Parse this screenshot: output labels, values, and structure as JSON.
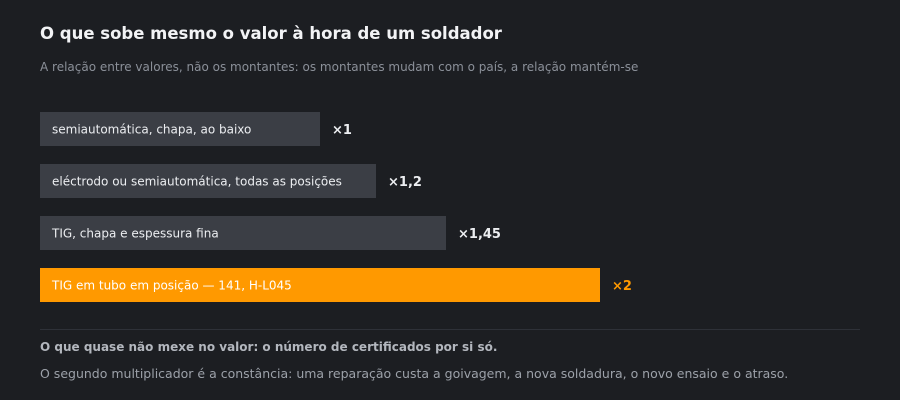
{
  "header": {
    "title": "O que sobe mesmo o valor à hora de um soldador",
    "subtitle": "A relação entre valores, não os montantes: os montantes mudam com o país, a relação mantém-se"
  },
  "chart_data": {
    "type": "bar",
    "orientation": "horizontal",
    "categories": [
      "semiautomática, chapa, ao baixo",
      "eléctrodo ou semiautomática, todas as posições",
      "TIG, chapa e espessura fina",
      "TIG em tubo em posição — 141, H-L045"
    ],
    "values": [
      1,
      1.2,
      1.45,
      2
    ],
    "value_labels": [
      "×1",
      "×1,2",
      "×1,45",
      "×2"
    ],
    "highlight_index": 3,
    "colors": {
      "bar": "#3b3e45",
      "highlight": "#ff9900",
      "label": "#eceef1",
      "highlight_label": "#ffffff",
      "value_label": "#eceef1",
      "highlight_value_label": "#ff9900"
    }
  },
  "footer": {
    "note_title": "O que quase não mexe no valor: o número de certificados por si só.",
    "note_body": "O segundo multiplicador é a constância: uma reparação custa a goivagem, a nova soldadura, o novo ensaio e o atraso."
  }
}
